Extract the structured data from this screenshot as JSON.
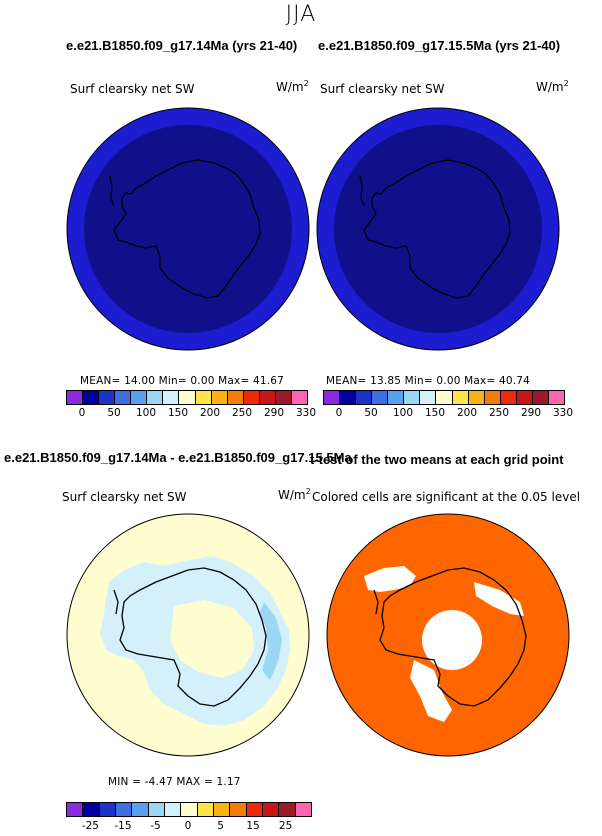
{
  "season": "JJA",
  "titles": {
    "case1": "e.e21.B1850.f09_g17.14Ma (yrs 21-40)",
    "case2": "e.e21.B1850.f09_g17.15.5Ma (yrs 21-40)",
    "diff": "e.e21.B1850.f09_g17.14Ma - e.e21.B1850.f09_g17.15.5Ma",
    "ttest": "t-test of the two means at each grid point"
  },
  "panels": {
    "p1": {
      "label": "Surf clearsky net SW",
      "unit": "W/m",
      "unit_exp": "2",
      "mean_text": "MEAN=   14.00   Min=    0.00   Max=   41.67"
    },
    "p2": {
      "label": "Surf clearsky net SW",
      "unit": "W/m",
      "unit_exp": "2",
      "mean_text": "MEAN=   13.85   Min=    0.00   Max=   40.74"
    },
    "p3": {
      "label": "Surf clearsky net SW",
      "unit": "W/m",
      "unit_exp": "2",
      "minmax_text": "MIN =   -4.47  MAX =    1.17"
    },
    "p4": {
      "label": "Colored cells are significant at the 0.05 level"
    }
  },
  "colorbars": {
    "abs": {
      "colors": [
        "#8a2be2",
        "#0000a0",
        "#1c33c8",
        "#3d6fe0",
        "#5aa0f0",
        "#9ad7f5",
        "#d4f0fa",
        "#fefed0",
        "#fde44a",
        "#f9b217",
        "#f47d0a",
        "#ee2a0a",
        "#c81616",
        "#9a1a2a",
        "#ff66b0"
      ],
      "ticks": [
        "0",
        "50",
        "100",
        "150",
        "200",
        "250",
        "290",
        "330"
      ]
    },
    "diff": {
      "colors": [
        "#8a2be2",
        "#0000a0",
        "#1c33c8",
        "#3d6fe0",
        "#5aa0f0",
        "#9ad7f5",
        "#d4f0fa",
        "#fefed0",
        "#fde44a",
        "#f9b217",
        "#f47d0a",
        "#ee2a0a",
        "#c81616",
        "#9a1a2a",
        "#ff66b0"
      ],
      "ticks": [
        "-25",
        "-15",
        "-5",
        "0",
        "5",
        "15",
        "25"
      ]
    }
  },
  "map_colors": {
    "abs_outer": "#1c1cd0",
    "abs_inner": "#10108a",
    "diff_bg": "#fefed0",
    "diff_neg": "#d4f0fa",
    "diff_neg2": "#9ad7f5",
    "ttest_sig": "#ff6600"
  }
}
